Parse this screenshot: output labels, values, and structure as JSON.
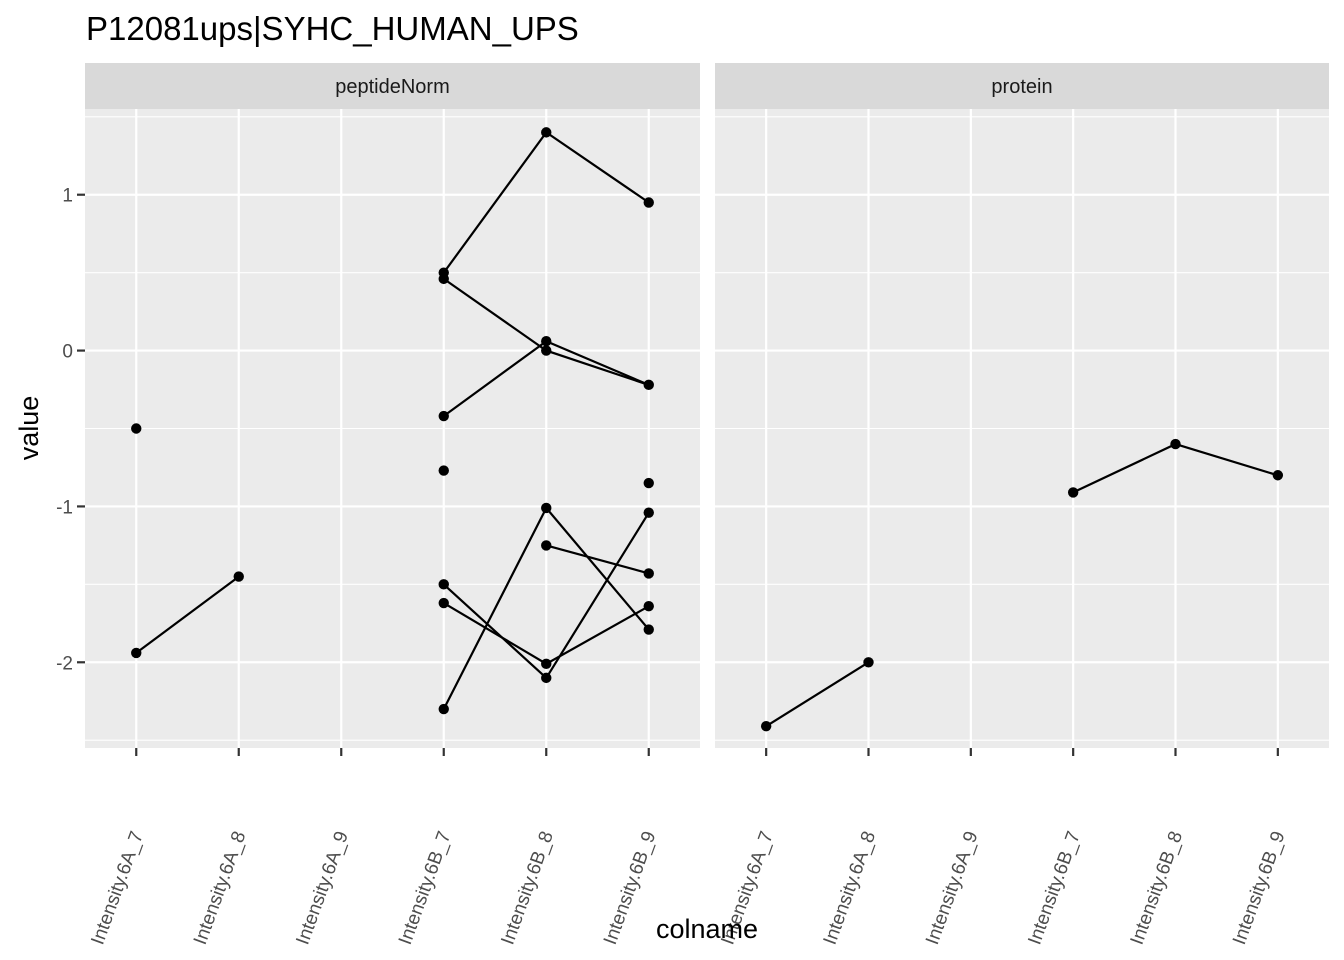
{
  "chart_data": {
    "type": "line",
    "title": "P12081ups|SYHC_HUMAN_UPS",
    "xlabel": "colname",
    "ylabel": "value",
    "ylim": [
      -2.55,
      1.55
    ],
    "yticks": [
      -2,
      -1,
      0,
      1
    ],
    "ytick_labels": [
      "-2",
      "-1",
      "0",
      "1"
    ],
    "categories": [
      "Intensity.6A_7",
      "Intensity.6A_8",
      "Intensity.6A_9",
      "Intensity.6B_7",
      "Intensity.6B_8",
      "Intensity.6B_9"
    ],
    "facets": [
      {
        "label": "peptideNorm",
        "lines": [
          [
            [
              "Intensity.6A_7",
              -1.94
            ],
            [
              "Intensity.6A_8",
              -1.45
            ]
          ],
          [
            [
              "Intensity.6B_7",
              0.5
            ],
            [
              "Intensity.6B_8",
              1.4
            ],
            [
              "Intensity.6B_9",
              0.95
            ]
          ],
          [
            [
              "Intensity.6B_7",
              0.46
            ],
            [
              "Intensity.6B_8",
              0.0
            ],
            [
              "Intensity.6B_9",
              -0.22
            ]
          ],
          [
            [
              "Intensity.6B_7",
              -0.42
            ],
            [
              "Intensity.6B_8",
              0.06
            ],
            [
              "Intensity.6B_9",
              -0.22
            ]
          ],
          [
            [
              "Intensity.6B_7",
              -1.5
            ],
            [
              "Intensity.6B_8",
              -2.1
            ],
            [
              "Intensity.6B_9",
              -1.04
            ]
          ],
          [
            [
              "Intensity.6B_7",
              -1.62
            ],
            [
              "Intensity.6B_8",
              -2.01
            ],
            [
              "Intensity.6B_9",
              -1.64
            ]
          ],
          [
            [
              "Intensity.6B_7",
              -2.3
            ],
            [
              "Intensity.6B_8",
              -1.01
            ],
            [
              "Intensity.6B_9",
              -1.79
            ]
          ],
          [
            [
              "Intensity.6B_8",
              -1.25
            ],
            [
              "Intensity.6B_9",
              -1.43
            ]
          ]
        ],
        "points": [
          [
            "Intensity.6A_7",
            -0.5
          ],
          [
            "Intensity.6A_7",
            -1.94
          ],
          [
            "Intensity.6A_8",
            -1.45
          ],
          [
            "Intensity.6B_7",
            0.5
          ],
          [
            "Intensity.6B_7",
            0.46
          ],
          [
            "Intensity.6B_7",
            -0.42
          ],
          [
            "Intensity.6B_7",
            -0.77
          ],
          [
            "Intensity.6B_7",
            -1.5
          ],
          [
            "Intensity.6B_7",
            -1.62
          ],
          [
            "Intensity.6B_7",
            -2.3
          ],
          [
            "Intensity.6B_8",
            1.4
          ],
          [
            "Intensity.6B_8",
            0.06
          ],
          [
            "Intensity.6B_8",
            0.0
          ],
          [
            "Intensity.6B_8",
            -1.01
          ],
          [
            "Intensity.6B_8",
            -1.25
          ],
          [
            "Intensity.6B_8",
            -2.01
          ],
          [
            "Intensity.6B_8",
            -2.1
          ],
          [
            "Intensity.6B_9",
            0.95
          ],
          [
            "Intensity.6B_9",
            -0.22
          ],
          [
            "Intensity.6B_9",
            -0.85
          ],
          [
            "Intensity.6B_9",
            -1.04
          ],
          [
            "Intensity.6B_9",
            -1.43
          ],
          [
            "Intensity.6B_9",
            -1.64
          ],
          [
            "Intensity.6B_9",
            -1.79
          ]
        ]
      },
      {
        "label": "protein",
        "lines": [
          [
            [
              "Intensity.6A_7",
              -2.41
            ],
            [
              "Intensity.6A_8",
              -2.0
            ]
          ],
          [
            [
              "Intensity.6B_7",
              -0.91
            ],
            [
              "Intensity.6B_8",
              -0.6
            ],
            [
              "Intensity.6B_9",
              -0.8
            ]
          ]
        ],
        "points": [
          [
            "Intensity.6A_7",
            -2.41
          ],
          [
            "Intensity.6A_8",
            -2.0
          ],
          [
            "Intensity.6B_7",
            -0.91
          ],
          [
            "Intensity.6B_8",
            -0.6
          ],
          [
            "Intensity.6B_9",
            -0.8
          ]
        ]
      }
    ],
    "grid": true,
    "legend": "none",
    "colors": {
      "panel_background": "#ebebeb",
      "strip_background": "#d9d9d9",
      "grid": "#ffffff",
      "marks": "#000000",
      "tick_text": "#4d4d4d"
    }
  }
}
